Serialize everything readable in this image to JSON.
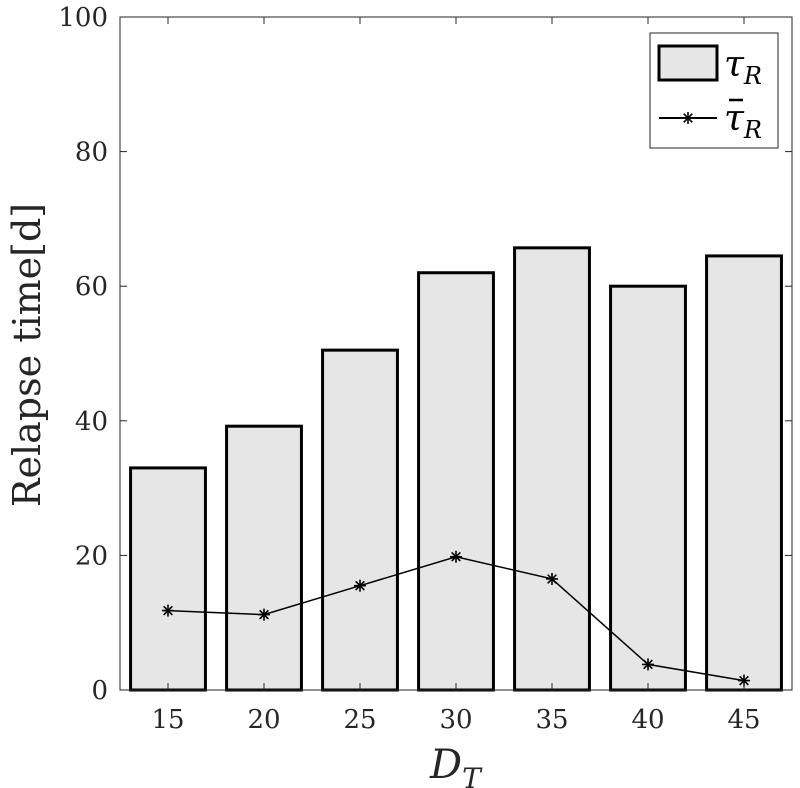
{
  "chart_data": {
    "type": "bar",
    "categories": [
      "15",
      "20",
      "25",
      "30",
      "35",
      "40",
      "45"
    ],
    "series": [
      {
        "name": "τ_R",
        "type": "bar",
        "values": [
          33,
          39.2,
          50.5,
          62,
          65.7,
          60,
          64.5
        ],
        "color": "#e6e6e6",
        "edge_color": "#000000"
      },
      {
        "name": "τ̄_R",
        "type": "line",
        "marker": "asterisk",
        "values": [
          11.8,
          11.2,
          15.5,
          19.8,
          16.5,
          3.8,
          1.4
        ],
        "color": "#000000"
      }
    ],
    "xlabel": "D_T",
    "ylabel": "Relapse time[d]",
    "ylim": [
      0,
      100
    ],
    "yticks": [
      "0",
      "20",
      "40",
      "60",
      "80",
      "100"
    ],
    "xticks": [
      "15",
      "20",
      "25",
      "30",
      "35",
      "40",
      "45"
    ],
    "legend": {
      "position": "top-right",
      "entries": [
        {
          "main": "τ",
          "sub": "R",
          "accent": false
        },
        {
          "main": "τ",
          "sub": "R",
          "accent": true
        }
      ]
    },
    "grid": false
  }
}
